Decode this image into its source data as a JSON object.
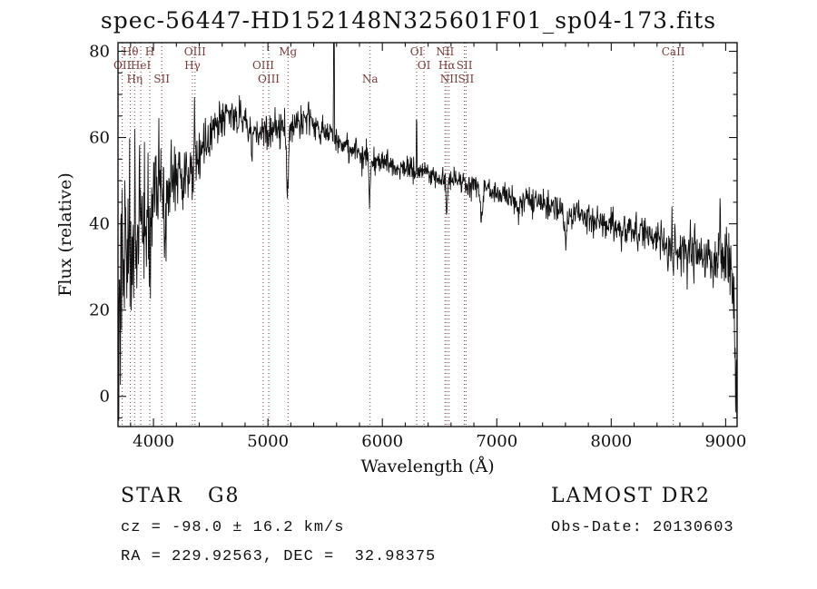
{
  "chart_data": {
    "type": "line",
    "title": "spec-56447-HD152148N325601F01_sp04-173.fits",
    "xlabel": "Wavelength (Å)",
    "ylabel": "Flux (relative)",
    "xlim": [
      3690,
      9100
    ],
    "ylim": [
      -7,
      82
    ],
    "xticks": [
      4000,
      5000,
      6000,
      7000,
      8000,
      9000
    ],
    "yticks": [
      0,
      20,
      40,
      60,
      80
    ],
    "x_minor_step": 200,
    "y_minor_step": 5,
    "grid": false,
    "legend": "none",
    "line_color": "#111111",
    "marker_color": "#7d3a3a",
    "spectral_lines": [
      {
        "wl": 3727,
        "label": "OII",
        "row": 2
      },
      {
        "wl": 3798,
        "label": "Hθ",
        "row": 1
      },
      {
        "wl": 3835,
        "label": "Hη",
        "row": 3
      },
      {
        "wl": 3889,
        "label": "HeI",
        "row": 2
      },
      {
        "wl": 3968,
        "label": "H",
        "row": 1
      },
      {
        "wl": 4072,
        "label": "SII",
        "row": 3
      },
      {
        "wl": 4340,
        "label": "Hγ",
        "row": 2
      },
      {
        "wl": 4363,
        "label": "OIII",
        "row": 1
      },
      {
        "wl": 4959,
        "label": "OIII",
        "row": 2
      },
      {
        "wl": 5007,
        "label": "OIII",
        "row": 3
      },
      {
        "wl": 5175,
        "label": "Mg",
        "row": 1
      },
      {
        "wl": 5893,
        "label": "Na",
        "row": 3
      },
      {
        "wl": 6300,
        "label": "OI",
        "row": 1
      },
      {
        "wl": 6364,
        "label": "OI",
        "row": 2
      },
      {
        "wl": 6548,
        "label": "NII",
        "row": 1
      },
      {
        "wl": 6563,
        "label": "Hα",
        "row": 2
      },
      {
        "wl": 6583,
        "label": "NII",
        "row": 3
      },
      {
        "wl": 6717,
        "label": "SII",
        "row": 2
      },
      {
        "wl": 6731,
        "label": "SII",
        "row": 3
      },
      {
        "wl": 8542,
        "label": "CaII",
        "row": 1
      }
    ],
    "spectrum": {
      "continuum": [
        [
          3690,
          26
        ],
        [
          3740,
          28
        ],
        [
          3800,
          36
        ],
        [
          3850,
          41
        ],
        [
          3900,
          45
        ],
        [
          3960,
          46
        ],
        [
          4000,
          47
        ],
        [
          4100,
          48
        ],
        [
          4200,
          50
        ],
        [
          4300,
          53
        ],
        [
          4400,
          57
        ],
        [
          4500,
          61
        ],
        [
          4600,
          64
        ],
        [
          4700,
          65
        ],
        [
          4800,
          63
        ],
        [
          4900,
          61
        ],
        [
          5000,
          61
        ],
        [
          5100,
          62
        ],
        [
          5250,
          63
        ],
        [
          5350,
          64
        ],
        [
          5450,
          62
        ],
        [
          5550,
          60
        ],
        [
          5650,
          58
        ],
        [
          5750,
          57
        ],
        [
          5850,
          56
        ],
        [
          5950,
          55
        ],
        [
          6050,
          54
        ],
        [
          6150,
          53
        ],
        [
          6250,
          53
        ],
        [
          6350,
          52
        ],
        [
          6450,
          51
        ],
        [
          6550,
          50
        ],
        [
          6650,
          50
        ],
        [
          6750,
          49
        ],
        [
          6850,
          48
        ],
        [
          6950,
          48
        ],
        [
          7050,
          47
        ],
        [
          7150,
          46
        ],
        [
          7250,
          45
        ],
        [
          7350,
          45
        ],
        [
          7450,
          44
        ],
        [
          7550,
          43
        ],
        [
          7650,
          42
        ],
        [
          7750,
          42
        ],
        [
          7850,
          41
        ],
        [
          7950,
          40
        ],
        [
          8050,
          39
        ],
        [
          8150,
          38
        ],
        [
          8250,
          38
        ],
        [
          8350,
          37
        ],
        [
          8450,
          36
        ],
        [
          8550,
          35
        ],
        [
          8650,
          34
        ],
        [
          8750,
          33
        ],
        [
          8850,
          32
        ],
        [
          8950,
          32
        ],
        [
          9030,
          33
        ],
        [
          9060,
          24
        ],
        [
          9085,
          8
        ],
        [
          9100,
          0
        ]
      ],
      "noise_sigma": [
        [
          3690,
          15
        ],
        [
          3760,
          13
        ],
        [
          3820,
          11
        ],
        [
          3880,
          9
        ],
        [
          3940,
          7.5
        ],
        [
          4000,
          6.5
        ],
        [
          4080,
          5.5
        ],
        [
          4160,
          5
        ],
        [
          4250,
          4
        ],
        [
          4350,
          3.2
        ],
        [
          4500,
          2.6
        ],
        [
          4700,
          2.2
        ],
        [
          5000,
          2
        ],
        [
          5400,
          1.8
        ],
        [
          5800,
          1.6
        ],
        [
          6200,
          1.4
        ],
        [
          6600,
          1.3
        ],
        [
          7000,
          1.4
        ],
        [
          7400,
          1.6
        ],
        [
          7800,
          1.8
        ],
        [
          8200,
          2.1
        ],
        [
          8600,
          2.6
        ],
        [
          8900,
          3.4
        ],
        [
          9100,
          4
        ]
      ],
      "absorption": [
        {
          "wl": 3933,
          "depth": 16,
          "sigma": 7
        },
        {
          "wl": 3969,
          "depth": 14,
          "sigma": 7
        },
        {
          "wl": 4101,
          "depth": 10,
          "sigma": 5
        },
        {
          "wl": 4340,
          "depth": 9,
          "sigma": 5
        },
        {
          "wl": 4861,
          "depth": 8,
          "sigma": 5
        },
        {
          "wl": 5172,
          "depth": 17,
          "sigma": 8
        },
        {
          "wl": 5890,
          "depth": 11,
          "sigma": 7
        },
        {
          "wl": 6563,
          "depth": 8,
          "sigma": 5
        },
        {
          "wl": 6870,
          "depth": 6,
          "sigma": 9
        },
        {
          "wl": 7186,
          "depth": 4,
          "sigma": 8
        },
        {
          "wl": 7600,
          "depth": 7,
          "sigma": 10
        },
        {
          "wl": 8230,
          "depth": 4,
          "sigma": 6
        },
        {
          "wl": 8498,
          "depth": 5,
          "sigma": 4
        },
        {
          "wl": 8542,
          "depth": 7,
          "sigma": 4
        },
        {
          "wl": 8662,
          "depth": 6,
          "sigma": 4
        }
      ],
      "emission": [
        {
          "wl": 4046,
          "height": 11,
          "sigma": 2.5
        },
        {
          "wl": 4358,
          "height": 13,
          "sigma": 2.5
        },
        {
          "wl": 5577,
          "height": 45,
          "sigma": 2.5
        },
        {
          "wl": 6300,
          "height": 13,
          "sigma": 2.5
        },
        {
          "wl": 8950,
          "height": 15,
          "sigma": 2.5
        }
      ],
      "sample_step": 3.5,
      "seed": 20130603
    }
  },
  "footer": {
    "class_line": "STAR   G8",
    "survey": "LAMOST DR2",
    "cz_line": "cz = -98.0 ± 16.2 km/s",
    "obsdate_line": "Obs-Date: 20130603",
    "radec_line": "RA = 229.92563, DEC =  32.98375"
  }
}
